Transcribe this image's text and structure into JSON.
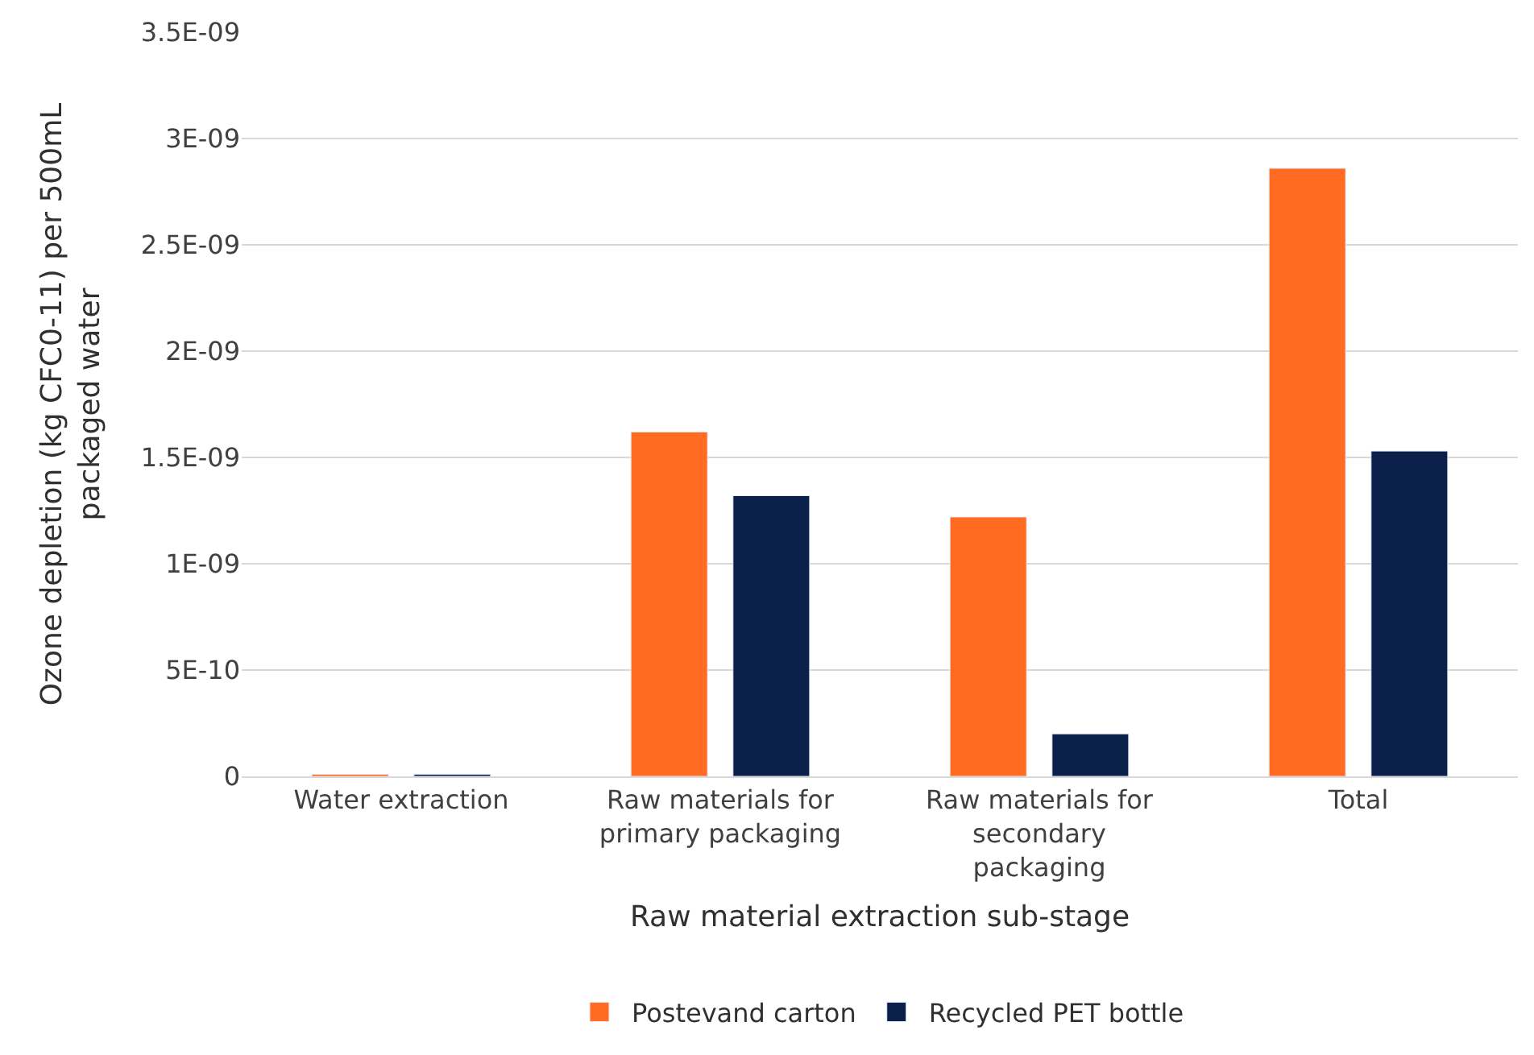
{
  "chart_data": {
    "type": "bar",
    "xlabel": "Raw material extraction sub-stage",
    "ylabel": "Ozone depletion (kg CFC0-11) per 500mL packaged water",
    "categories": [
      "Water extraction",
      "Raw materials for primary packaging",
      "Raw materials for secondary packaging",
      "Total"
    ],
    "series": [
      {
        "name": "Postevand carton",
        "color": "#ff6b21",
        "values": [
          1e-11,
          1.62e-09,
          1.22e-09,
          2.86e-09
        ]
      },
      {
        "name": "Recycled PET bottle",
        "color": "#0b1f4b",
        "values": [
          1e-11,
          1.32e-09,
          2e-10,
          1.53e-09
        ]
      }
    ],
    "ylim": [
      0,
      3.5e-09
    ],
    "yticks": [
      {
        "value": 0,
        "label": "0"
      },
      {
        "value": 5e-10,
        "label": "5E-10"
      },
      {
        "value": 1e-09,
        "label": "1E-09"
      },
      {
        "value": 1.5e-09,
        "label": "1.5E-09"
      },
      {
        "value": 2e-09,
        "label": "2E-09"
      },
      {
        "value": 2.5e-09,
        "label": "2.5E-09"
      },
      {
        "value": 3e-09,
        "label": "3E-09"
      },
      {
        "value": 3.5e-09,
        "label": "3.5E-09"
      }
    ],
    "grid": "y",
    "legend": "bottom"
  }
}
